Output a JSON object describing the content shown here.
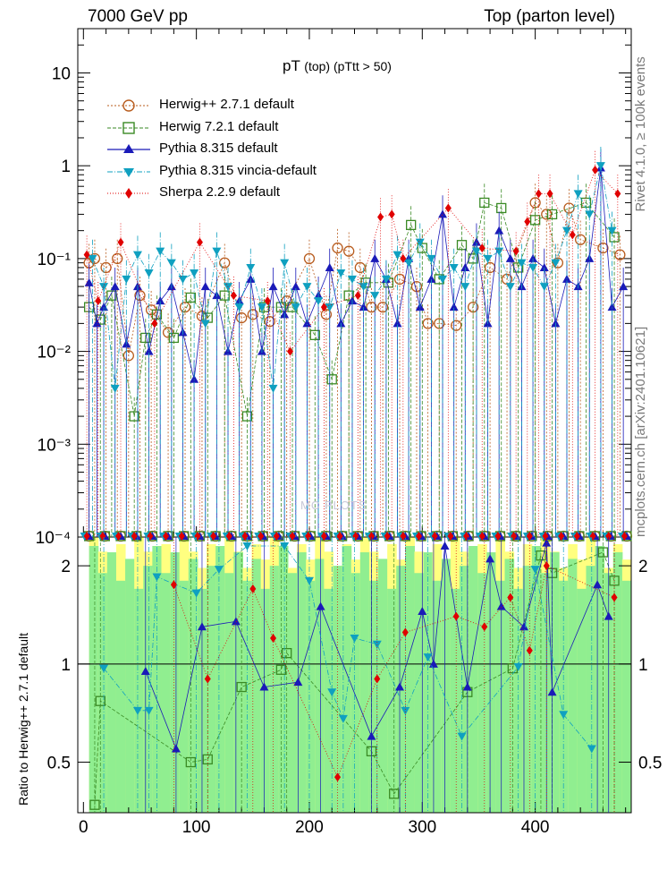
{
  "header": {
    "left": "7000 GeV pp",
    "right": "Top (parton level)",
    "side_label_a": "Rivet 4.1.0, ≥ 100k events",
    "side_label_b": "mcplots.cern.ch [arXiv:2401.10621]",
    "watermark": "MC PLOTS"
  },
  "chart_data": [
    {
      "type": "scatter",
      "panel": "main",
      "title": "pT",
      "title_suffix": "(top) (pTtt > 50)",
      "xlabel": "",
      "ylabel": "",
      "xlim": [
        -5,
        485
      ],
      "ylim": [
        0.0001,
        30
      ],
      "yscale": "log",
      "ytick_labels": [
        "10",
        "1",
        "10⁻¹",
        "10⁻²",
        "10⁻³",
        "10⁻⁴"
      ],
      "ytick_values": [
        10,
        1,
        0.1,
        0.01,
        0.001,
        0.0001
      ],
      "legend_position": "top-left",
      "series": [
        {
          "name": "Herwig++ 2.7.1 default",
          "color": "#b85c1e",
          "marker": "circle-open",
          "x": [
            5,
            10,
            20,
            30,
            40,
            50,
            60,
            75,
            90,
            105,
            125,
            140,
            150,
            165,
            180,
            200,
            215,
            225,
            235,
            245,
            255,
            265,
            280,
            295,
            305,
            315,
            330,
            345,
            360,
            375,
            400,
            410,
            420,
            430,
            440,
            460,
            475
          ],
          "values": [
            0.09,
            0.1,
            0.08,
            0.1,
            0.009,
            0.04,
            0.028,
            0.016,
            0.03,
            0.024,
            0.09,
            0.023,
            0.025,
            0.021,
            0.035,
            0.1,
            0.025,
            0.13,
            0.12,
            0.08,
            0.03,
            0.03,
            0.06,
            0.05,
            0.02,
            0.02,
            0.019,
            0.03,
            0.08,
            0.06,
            0.4,
            0.3,
            0.09,
            0.35,
            0.16,
            0.13,
            0.11
          ]
        },
        {
          "name": "Herwig 7.2.1 default",
          "color": "#3a8a24",
          "marker": "square-open",
          "x": [
            5,
            15,
            25,
            45,
            55,
            65,
            80,
            95,
            110,
            125,
            145,
            160,
            175,
            185,
            205,
            220,
            235,
            250,
            270,
            290,
            300,
            315,
            335,
            345,
            355,
            370,
            385,
            400,
            415,
            445,
            470
          ],
          "values": [
            0.03,
            0.022,
            0.04,
            0.002,
            0.014,
            0.025,
            0.014,
            0.038,
            0.023,
            0.04,
            0.002,
            0.03,
            0.03,
            0.03,
            0.015,
            0.005,
            0.04,
            0.055,
            0.055,
            0.23,
            0.13,
            0.06,
            0.14,
            0.1,
            0.4,
            0.35,
            0.08,
            0.26,
            0.3,
            0.4,
            0.17
          ]
        },
        {
          "name": "Pythia 8.315 default",
          "color": "#1a1ab8",
          "marker": "triangle-up",
          "x": [
            5,
            12,
            18,
            28,
            38,
            48,
            58,
            68,
            78,
            88,
            98,
            108,
            118,
            128,
            138,
            148,
            158,
            168,
            178,
            188,
            198,
            208,
            218,
            228,
            238,
            248,
            258,
            268,
            278,
            288,
            298,
            308,
            318,
            328,
            338,
            348,
            358,
            368,
            378,
            388,
            398,
            408,
            418,
            428,
            438,
            448,
            458,
            468,
            478
          ],
          "values": [
            0.055,
            0.02,
            0.03,
            0.05,
            0.012,
            0.05,
            0.01,
            0.035,
            0.05,
            0.016,
            0.005,
            0.05,
            0.04,
            0.01,
            0.035,
            0.06,
            0.01,
            0.05,
            0.025,
            0.05,
            0.02,
            0.04,
            0.08,
            0.02,
            0.035,
            0.03,
            0.1,
            0.06,
            0.02,
            0.1,
            0.03,
            0.06,
            0.3,
            0.03,
            0.08,
            0.15,
            0.02,
            0.2,
            0.1,
            0.05,
            0.1,
            0.08,
            0.02,
            0.06,
            0.05,
            0.1,
            0.95,
            0.03,
            0.05
          ]
        },
        {
          "name": "Pythia 8.315 vincia-default",
          "color": "#0fa0c0",
          "marker": "triangle-down",
          "x": [
            8,
            18,
            28,
            38,
            48,
            58,
            68,
            78,
            88,
            98,
            108,
            118,
            128,
            138,
            148,
            158,
            168,
            178,
            188,
            198,
            208,
            218,
            228,
            238,
            248,
            258,
            268,
            278,
            288,
            298,
            308,
            318,
            328,
            338,
            348,
            358,
            368,
            378,
            388,
            398,
            408,
            418,
            428,
            438,
            448,
            458,
            468
          ],
          "values": [
            0.1,
            0.05,
            0.004,
            0.06,
            0.11,
            0.07,
            0.12,
            0.09,
            0.06,
            0.07,
            0.02,
            0.12,
            0.05,
            0.03,
            0.08,
            0.03,
            0.004,
            0.09,
            0.03,
            0.05,
            0.035,
            0.03,
            0.07,
            0.06,
            0.05,
            0.04,
            0.06,
            0.11,
            0.09,
            0.15,
            0.1,
            0.06,
            0.08,
            0.05,
            0.12,
            0.1,
            0.12,
            0.05,
            0.09,
            0.08,
            0.05,
            0.09,
            0.2,
            0.5,
            0.3,
            1.0,
            0.2
          ]
        },
        {
          "name": "Sherpa 2.2.9 default",
          "color": "#e00000",
          "marker": "diamond",
          "x": [
            3,
            13,
            33,
            63,
            103,
            133,
            163,
            183,
            213,
            243,
            263,
            273,
            283,
            323,
            353,
            383,
            393,
            403,
            413,
            433,
            453,
            473
          ],
          "values": [
            0.11,
            0.035,
            0.15,
            0.02,
            0.15,
            0.04,
            0.035,
            0.01,
            0.03,
            0.04,
            0.28,
            0.3,
            0.1,
            0.35,
            0.13,
            0.12,
            0.25,
            0.5,
            0.5,
            0.18,
            0.9,
            0.5
          ]
        }
      ]
    },
    {
      "type": "scatter",
      "panel": "ratio",
      "ylabel": "Ratio to Herwig++ 2.7.1 default",
      "xlim": [
        -5,
        485
      ],
      "ylim": [
        0.35,
        2.45
      ],
      "yscale": "log",
      "ytick_labels": [
        "2",
        "1",
        "0.5"
      ],
      "ytick_values": [
        2,
        1,
        0.5
      ],
      "xtick_labels": [
        "0",
        "100",
        "200",
        "300",
        "400"
      ],
      "xtick_values": [
        0,
        100,
        200,
        300,
        400
      ],
      "reference_line": 1,
      "band_colors": [
        "#ffff80",
        "#90ee90"
      ],
      "series": [
        {
          "name": "Herwig 7.2.1 default",
          "x": [
            10,
            15,
            95,
            110,
            140,
            175,
            180,
            255,
            275,
            340,
            380,
            405,
            415,
            460,
            470
          ],
          "values": [
            0.37,
            0.77,
            0.5,
            0.51,
            0.85,
            0.96,
            1.08,
            0.54,
            0.4,
            0.82,
            0.97,
            2.15,
            1.9,
            2.2,
            1.8
          ]
        },
        {
          "name": "Pythia 8.315 default",
          "x": [
            55,
            82,
            105,
            135,
            160,
            190,
            210,
            255,
            280,
            300,
            310,
            320,
            340,
            360,
            370,
            390,
            410,
            415,
            455,
            465
          ],
          "values": [
            0.95,
            0.55,
            1.3,
            1.35,
            0.85,
            0.88,
            1.5,
            0.6,
            0.85,
            1.45,
            1.0,
            2.3,
            0.85,
            2.1,
            1.5,
            1.3,
            2.35,
            0.82,
            1.75,
            1.4
          ]
        },
        {
          "name": "Pythia 8.315 vincia-default",
          "x": [
            18,
            48,
            58,
            65,
            100,
            120,
            145,
            178,
            200,
            220,
            230,
            240,
            260,
            285,
            305,
            335,
            385,
            400,
            425,
            450
          ],
          "values": [
            0.97,
            0.72,
            0.72,
            1.85,
            1.65,
            1.95,
            2.3,
            2.3,
            1.8,
            0.82,
            0.68,
            1.2,
            1.15,
            0.72,
            1.05,
            0.6,
            0.98,
            1.95,
            0.7,
            0.55
          ]
        },
        {
          "name": "Sherpa 2.2.9 default",
          "x": [
            80,
            110,
            150,
            168,
            225,
            260,
            285,
            330,
            355,
            378,
            395,
            410,
            470
          ],
          "values": [
            1.75,
            0.9,
            1.7,
            1.2,
            0.45,
            0.9,
            1.25,
            1.4,
            1.3,
            1.6,
            1.1,
            2.0,
            1.6
          ]
        }
      ]
    }
  ]
}
